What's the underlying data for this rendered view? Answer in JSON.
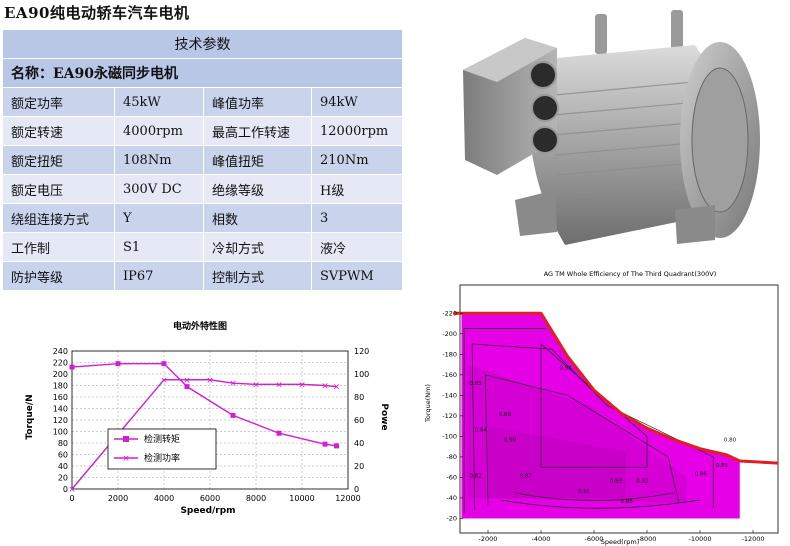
{
  "title": "EA90纯电动轿车汽车电机",
  "spec": {
    "header": "技术参数",
    "name_row": "名称：EA90永磁同步电机",
    "rows": [
      [
        "额定功率",
        "45kW",
        "峰值功率",
        "94kW"
      ],
      [
        "额定转速",
        "4000rpm",
        "最高工作转速",
        "12000rpm"
      ],
      [
        "额定扭矩",
        "108Nm",
        "峰值扭矩",
        "210Nm"
      ],
      [
        "额定电压",
        "300V DC",
        "绝缘等级",
        "H级"
      ],
      [
        "绕组连接方式",
        "Y",
        "相数",
        "3"
      ],
      [
        "工作制",
        "S1",
        "冷却方式",
        "液冷"
      ],
      [
        "防护等级",
        "IP67",
        "控制方式",
        "SVPWM"
      ]
    ]
  },
  "colors": {
    "table_header": "#b8c7e6",
    "row_dark": "#c9d3ec",
    "row_light": "#e4e9f5",
    "series": "#d21fd2",
    "envelope": "#e02020",
    "fill": "#e600e6"
  },
  "chart_data": [
    {
      "type": "line",
      "title": "电动外特性图",
      "xlabel": "Speed/rpm",
      "ylabel": "Torque/N",
      "y2label": "Powe",
      "xlim": [
        0,
        12000
      ],
      "ylim": [
        0,
        240
      ],
      "y2lim": [
        0,
        120
      ],
      "xticks": [
        "0",
        "2000",
        "4000",
        "6000",
        "8000",
        "10000",
        "12000"
      ],
      "yticks": [
        "0",
        "20",
        "40",
        "60",
        "80",
        "100",
        "120",
        "140",
        "160",
        "180",
        "200",
        "220",
        "240"
      ],
      "y2ticks": [
        "0",
        "20",
        "40",
        "60",
        "80",
        "100",
        "120"
      ],
      "legend_position": "center-left",
      "series": [
        {
          "name": "检测转矩",
          "axis": "left",
          "marker": "square",
          "x": [
            0,
            2000,
            4000,
            5000,
            7000,
            9000,
            11000,
            11500
          ],
          "y": [
            212,
            218,
            218,
            178,
            128,
            97,
            78,
            75
          ]
        },
        {
          "name": "检测功率",
          "axis": "right",
          "marker": "x",
          "x": [
            0,
            4000,
            5000,
            6000,
            7000,
            8000,
            9000,
            10000,
            11000,
            11500
          ],
          "y": [
            0,
            95,
            95,
            95,
            92,
            91,
            91,
            91,
            90,
            89
          ]
        }
      ]
    },
    {
      "type": "heatmap",
      "title": "AG TM Whole Efficiency of The Third Quadrant(300V)",
      "xlabel": "Speed(rpm)",
      "ylabel": "Torque(Nm)",
      "xlim": [
        0,
        -12000
      ],
      "ylim": [
        0,
        -220
      ],
      "xticks": [
        "-2000",
        "-4000",
        "-6000",
        "-8000",
        "-10000",
        "-12000"
      ],
      "yticks": [
        "-220",
        "-200",
        "-180",
        "-160",
        "-140",
        "-120",
        "-100",
        "-80",
        "-60",
        "-40",
        "-20"
      ],
      "envelope": {
        "x": [
          -1000,
          -4000,
          -5000,
          -6000,
          -7000,
          -8000,
          -9000,
          -10000,
          -11000,
          -11500
        ],
        "y": [
          -220,
          -220,
          -178,
          -145,
          -123,
          -108,
          -97,
          -88,
          -82,
          -76
        ]
      },
      "contour_labels": [
        "0.83",
        "0.93",
        "0.91",
        "0.92",
        "0.84",
        "0.86",
        "0.88",
        "0.87",
        "0.89",
        "0.90",
        "0.94",
        "0.85",
        "0.82",
        "0.80"
      ]
    }
  ]
}
